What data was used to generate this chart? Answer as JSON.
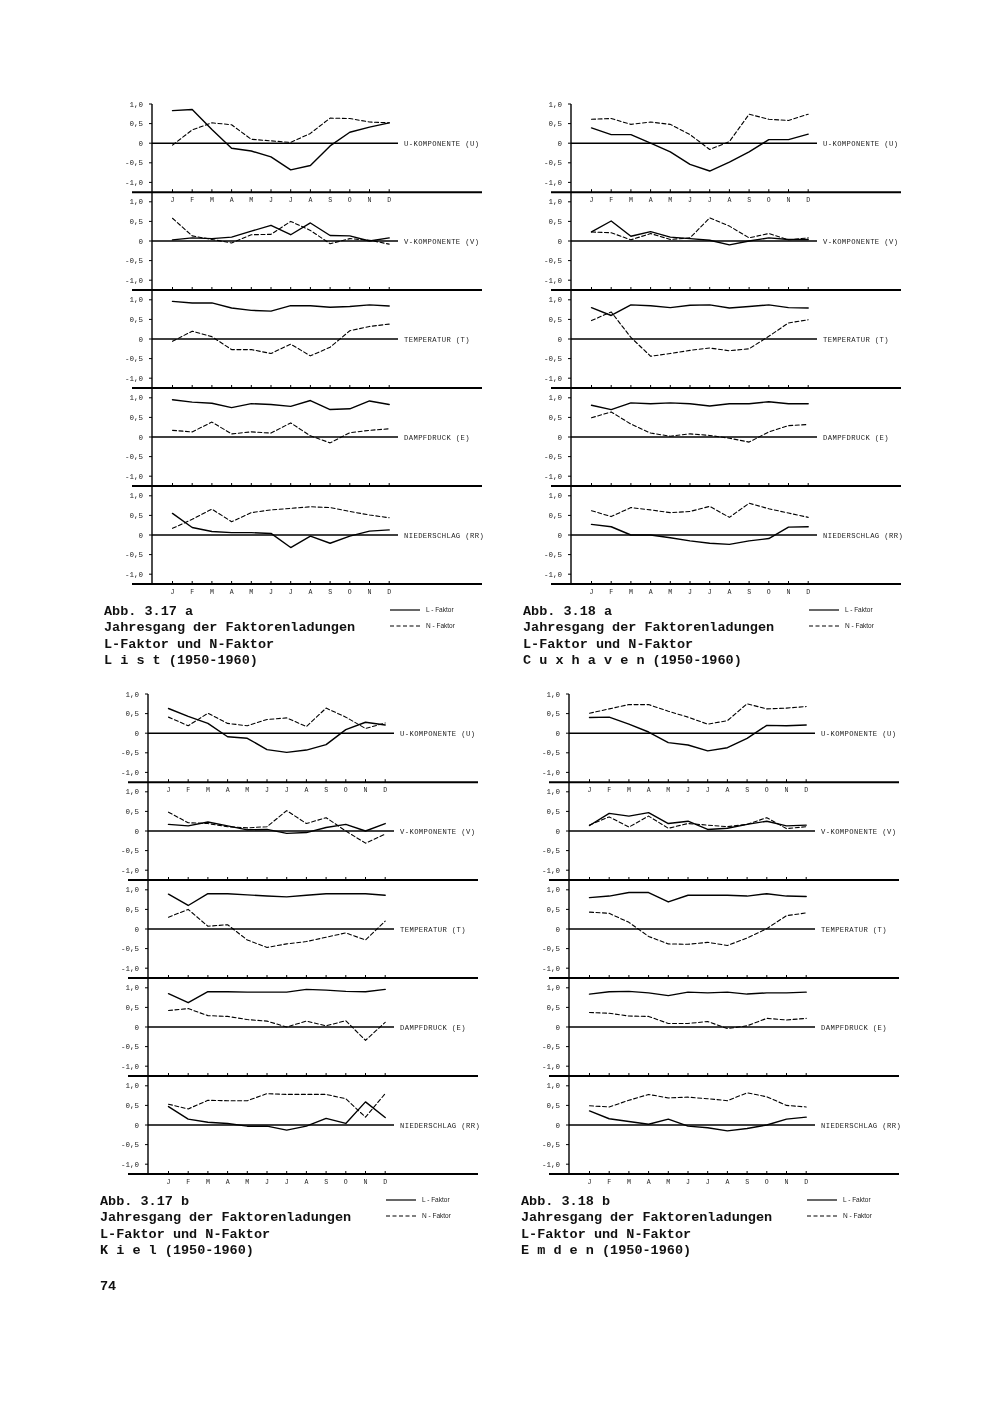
{
  "chart_data": [
    {
      "type": "line",
      "ylabel": "U-KOMPONENTE (U)",
      "categories": [
        "J",
        "F",
        "M",
        "A",
        "M",
        "J",
        "J",
        "A",
        "S",
        "O",
        "N",
        "D"
      ],
      "ylim": [
        -1.25,
        1
      ],
      "yticks": [
        {
          "value": 1,
          "label": "1,0"
        },
        {
          "value": 0.5,
          "label": "0,5"
        },
        {
          "value": 0,
          "label": "0"
        },
        {
          "value": -0.5,
          "label": "-0,5"
        },
        {
          "value": -1,
          "label": "-1,0"
        }
      ],
      "ref_lines": [
        {
          "axis": "y",
          "value": 0
        }
      ],
      "series": [
        {
          "color": "#000000",
          "line_style": "solid",
          "values": [
            0.83,
            0.86,
            0.35,
            -0.13,
            -0.2,
            -0.35,
            -0.68,
            -0.57,
            -0.07,
            0.28,
            0.41,
            0.52
          ]
        },
        {
          "color": "#000000",
          "line_style": "dashed",
          "values": [
            -0.05,
            0.34,
            0.52,
            0.47,
            0.1,
            0.06,
            0.02,
            0.25,
            0.64,
            0.63,
            0.54,
            0.52
          ]
        }
      ]
    },
    {
      "type": "line",
      "ylabel": "V-KOMPONENTE (V)",
      "categories": [
        null,
        null,
        null,
        null,
        null,
        null,
        null,
        null,
        null,
        null,
        null,
        null
      ],
      "tick_labels": "y",
      "ylim": [
        -1.25,
        1.25
      ],
      "yticks": [
        {
          "value": 1,
          "label": "1,0"
        },
        {
          "value": 0.5,
          "label": "0,5"
        },
        {
          "value": 0,
          "label": "0"
        },
        {
          "value": -0.5,
          "label": "-0,5"
        },
        {
          "value": -1,
          "label": "-1,0"
        }
      ],
      "ref_lines": [
        {
          "axis": "y",
          "value": 0
        }
      ],
      "series": [
        {
          "color": "#000000",
          "line_style": "solid",
          "values": [
            0.03,
            0.08,
            0.06,
            0.1,
            0.25,
            0.4,
            0.16,
            0.46,
            0.14,
            0.13,
            0.0,
            0.08
          ]
        },
        {
          "color": "#000000",
          "line_style": "dashed",
          "values": [
            0.58,
            0.13,
            0.04,
            -0.05,
            0.16,
            0.17,
            0.5,
            0.27,
            -0.07,
            0.06,
            0.02,
            -0.08
          ]
        }
      ]
    },
    {
      "type": "line",
      "ylabel": "TEMPERATUR (T)",
      "categories": [
        null,
        null,
        null,
        null,
        null,
        null,
        null,
        null,
        null,
        null,
        null,
        null
      ],
      "tick_labels": "y",
      "ylim": [
        -1.25,
        1.25
      ],
      "yticks": [
        {
          "value": 1,
          "label": "1,0"
        },
        {
          "value": 0.5,
          "label": "0,5"
        },
        {
          "value": 0,
          "label": "0"
        },
        {
          "value": -0.5,
          "label": "-0,5"
        },
        {
          "value": -1,
          "label": "-1,0"
        }
      ],
      "ref_lines": [
        {
          "axis": "y",
          "value": 0
        }
      ],
      "series": [
        {
          "color": "#000000",
          "line_style": "solid",
          "values": [
            0.96,
            0.92,
            0.92,
            0.79,
            0.73,
            0.71,
            0.85,
            0.85,
            0.81,
            0.83,
            0.87,
            0.84
          ]
        },
        {
          "color": "#000000",
          "line_style": "dashed",
          "values": [
            -0.06,
            0.2,
            0.06,
            -0.27,
            -0.27,
            -0.37,
            -0.13,
            -0.43,
            -0.21,
            0.21,
            0.32,
            0.38
          ]
        }
      ]
    },
    {
      "type": "line",
      "ylabel": "DAMPFDRUCK (E)",
      "categories": [
        null,
        null,
        null,
        null,
        null,
        null,
        null,
        null,
        null,
        null,
        null,
        null
      ],
      "tick_labels": "y",
      "ylim": [
        -1.25,
        1.25
      ],
      "yticks": [
        {
          "value": 1,
          "label": "1,0"
        },
        {
          "value": 0.5,
          "label": "0,5"
        },
        {
          "value": 0,
          "label": "0"
        },
        {
          "value": -0.5,
          "label": "-0,5"
        },
        {
          "value": -1,
          "label": "-1,0"
        }
      ],
      "ref_lines": [
        {
          "axis": "y",
          "value": 0
        }
      ],
      "series": [
        {
          "color": "#000000",
          "line_style": "solid",
          "values": [
            0.95,
            0.89,
            0.86,
            0.75,
            0.85,
            0.83,
            0.78,
            0.93,
            0.7,
            0.72,
            0.92,
            0.83
          ]
        },
        {
          "color": "#000000",
          "line_style": "dashed",
          "values": [
            0.17,
            0.13,
            0.38,
            0.08,
            0.13,
            0.1,
            0.36,
            0.03,
            -0.15,
            0.11,
            0.17,
            0.21
          ]
        }
      ]
    },
    {
      "type": "line",
      "ylabel": "NIEDERSCHLAG (RR)",
      "categories": [
        "J",
        "F",
        "M",
        "A",
        "M",
        "J",
        "J",
        "A",
        "S",
        "O",
        "N",
        "D"
      ],
      "ylim": [
        -1.25,
        1.25
      ],
      "yticks": [
        {
          "value": 1,
          "label": "1,0"
        },
        {
          "value": 0.5,
          "label": "0,5"
        },
        {
          "value": 0,
          "label": "0"
        },
        {
          "value": -0.5,
          "label": "-0,5"
        },
        {
          "value": -1,
          "label": "-1,0"
        }
      ],
      "ref_lines": [
        {
          "axis": "y",
          "value": 0
        }
      ],
      "legend": "bottom right",
      "annotations": [
        "Abb. 3.17 a",
        "Jahresgang der Faktorenladungen",
        "L-Faktor und N-Faktor",
        "L i s t (1950-1960)"
      ],
      "series": [
        {
          "name": "L - Faktor",
          "color": "#000000",
          "line_style": "solid",
          "values": [
            0.55,
            0.19,
            0.09,
            0.06,
            0.06,
            0.04,
            -0.32,
            -0.03,
            -0.21,
            -0.03,
            0.1,
            0.13
          ]
        },
        {
          "name": "N - Faktor",
          "color": "#000000",
          "line_style": "dashed",
          "values": [
            0.17,
            0.4,
            0.66,
            0.34,
            0.57,
            0.64,
            0.68,
            0.72,
            0.7,
            0.6,
            0.51,
            0.44
          ]
        }
      ]
    },
    {
      "type": "line",
      "ylabel": "U-KOMPONENTE (U)",
      "categories": [
        "J",
        "F",
        "M",
        "A",
        "M",
        "J",
        "J",
        "A",
        "S",
        "O",
        "N",
        "D"
      ],
      "ylim": [
        -1.25,
        1
      ],
      "yticks": [
        {
          "value": 1,
          "label": "1,0"
        },
        {
          "value": 0.5,
          "label": "0,5"
        },
        {
          "value": 0,
          "label": "0"
        },
        {
          "value": -0.5,
          "label": "-0,5"
        },
        {
          "value": -1,
          "label": "-1,0"
        }
      ],
      "ref_lines": [
        {
          "axis": "y",
          "value": 0
        }
      ],
      "series": [
        {
          "color": "#000000",
          "line_style": "solid",
          "values": [
            0.39,
            0.22,
            0.22,
            0.0,
            -0.22,
            -0.54,
            -0.71,
            -0.48,
            -0.22,
            0.09,
            0.09,
            0.23
          ]
        },
        {
          "color": "#000000",
          "line_style": "dashed",
          "values": [
            0.61,
            0.63,
            0.48,
            0.54,
            0.48,
            0.22,
            -0.16,
            0.04,
            0.74,
            0.61,
            0.58,
            0.74
          ]
        }
      ]
    },
    {
      "type": "line",
      "ylabel": "V-KOMPONENTE (V)",
      "categories": [
        null,
        null,
        null,
        null,
        null,
        null,
        null,
        null,
        null,
        null,
        null,
        null
      ],
      "tick_labels": "y",
      "ylim": [
        -1.25,
        1.25
      ],
      "yticks": [
        {
          "value": 1,
          "label": "1,0"
        },
        {
          "value": 0.5,
          "label": "0,5"
        },
        {
          "value": 0,
          "label": "0"
        },
        {
          "value": -0.5,
          "label": "-0,5"
        },
        {
          "value": -1,
          "label": "-1,0"
        }
      ],
      "ref_lines": [
        {
          "axis": "y",
          "value": 0
        }
      ],
      "series": [
        {
          "color": "#000000",
          "line_style": "solid",
          "values": [
            0.23,
            0.51,
            0.12,
            0.24,
            0.1,
            0.06,
            0.02,
            -0.1,
            0.0,
            0.08,
            0.04,
            0.04
          ]
        },
        {
          "color": "#000000",
          "line_style": "dashed",
          "values": [
            0.23,
            0.21,
            0.03,
            0.19,
            0.04,
            0.08,
            0.59,
            0.38,
            0.08,
            0.19,
            0.03,
            0.08
          ]
        }
      ]
    },
    {
      "type": "line",
      "ylabel": "TEMPERATUR (T)",
      "categories": [
        null,
        null,
        null,
        null,
        null,
        null,
        null,
        null,
        null,
        null,
        null,
        null
      ],
      "tick_labels": "y",
      "ylim": [
        -1.25,
        1.25
      ],
      "yticks": [
        {
          "value": 1,
          "label": "1,0"
        },
        {
          "value": 0.5,
          "label": "0,5"
        },
        {
          "value": 0,
          "label": "0"
        },
        {
          "value": -0.5,
          "label": "-0,5"
        },
        {
          "value": -1,
          "label": "-1,0"
        }
      ],
      "ref_lines": [
        {
          "axis": "y",
          "value": 0
        }
      ],
      "series": [
        {
          "color": "#000000",
          "line_style": "solid",
          "values": [
            0.8,
            0.6,
            0.87,
            0.85,
            0.8,
            0.86,
            0.87,
            0.79,
            0.83,
            0.87,
            0.8,
            0.79
          ]
        },
        {
          "color": "#000000",
          "line_style": "dashed",
          "values": [
            0.47,
            0.69,
            0.04,
            -0.44,
            -0.37,
            -0.29,
            -0.23,
            -0.3,
            -0.25,
            0.07,
            0.41,
            0.49
          ]
        }
      ]
    },
    {
      "type": "line",
      "ylabel": "DAMPFDRUCK (E)",
      "categories": [
        null,
        null,
        null,
        null,
        null,
        null,
        null,
        null,
        null,
        null,
        null,
        null
      ],
      "tick_labels": "y",
      "ylim": [
        -1.25,
        1.25
      ],
      "yticks": [
        {
          "value": 1,
          "label": "1,0"
        },
        {
          "value": 0.5,
          "label": "0,5"
        },
        {
          "value": 0,
          "label": "0"
        },
        {
          "value": -0.5,
          "label": "-0,5"
        },
        {
          "value": -1,
          "label": "-1,0"
        }
      ],
      "ref_lines": [
        {
          "axis": "y",
          "value": 0
        }
      ],
      "series": [
        {
          "color": "#000000",
          "line_style": "solid",
          "values": [
            0.81,
            0.7,
            0.87,
            0.85,
            0.87,
            0.85,
            0.79,
            0.85,
            0.85,
            0.9,
            0.85,
            0.85
          ]
        },
        {
          "color": "#000000",
          "line_style": "dashed",
          "values": [
            0.49,
            0.64,
            0.33,
            0.1,
            0.02,
            0.08,
            0.04,
            -0.03,
            -0.13,
            0.13,
            0.29,
            0.32
          ]
        }
      ]
    },
    {
      "type": "line",
      "ylabel": "NIEDERSCHLAG (RR)",
      "categories": [
        "J",
        "F",
        "M",
        "A",
        "M",
        "J",
        "J",
        "A",
        "S",
        "O",
        "N",
        "D"
      ],
      "ylim": [
        -1.25,
        1.25
      ],
      "yticks": [
        {
          "value": 1,
          "label": "1,0"
        },
        {
          "value": 0.5,
          "label": "0,5"
        },
        {
          "value": 0,
          "label": "0"
        },
        {
          "value": -0.5,
          "label": "-0,5"
        },
        {
          "value": -1,
          "label": "-1,0"
        }
      ],
      "ref_lines": [
        {
          "axis": "y",
          "value": 0
        }
      ],
      "legend": "bottom right",
      "annotations": [
        "Abb. 3.18 a",
        "Jahresgang der Faktorenladungen",
        "L-Faktor und N-Faktor",
        "C u x h a v e n (1950-1960)"
      ],
      "series": [
        {
          "name": "L - Faktor",
          "color": "#000000",
          "line_style": "solid",
          "values": [
            0.27,
            0.21,
            0.0,
            0.0,
            -0.07,
            -0.15,
            -0.21,
            -0.24,
            -0.15,
            -0.09,
            0.2,
            0.21
          ]
        },
        {
          "name": "N - Faktor",
          "color": "#000000",
          "line_style": "dashed",
          "values": [
            0.62,
            0.47,
            0.7,
            0.64,
            0.57,
            0.6,
            0.73,
            0.45,
            0.81,
            0.67,
            0.56,
            0.45
          ]
        }
      ]
    },
    {
      "type": "line",
      "ylabel": "U-KOMPONENTE (U)",
      "categories": [
        "J",
        "F",
        "M",
        "A",
        "M",
        "J",
        "J",
        "A",
        "S",
        "O",
        "N",
        "D"
      ],
      "ylim": [
        -1.25,
        1
      ],
      "yticks": [
        {
          "value": 1,
          "label": "1,0"
        },
        {
          "value": 0.5,
          "label": "0,5"
        },
        {
          "value": 0,
          "label": "0"
        },
        {
          "value": -0.5,
          "label": "-0,5"
        },
        {
          "value": -1,
          "label": "-1,0"
        }
      ],
      "ref_lines": [
        {
          "axis": "y",
          "value": 0
        }
      ],
      "series": [
        {
          "color": "#000000",
          "line_style": "solid",
          "values": [
            0.63,
            0.43,
            0.25,
            -0.09,
            -0.13,
            -0.42,
            -0.49,
            -0.43,
            -0.29,
            0.09,
            0.28,
            0.21
          ]
        },
        {
          "color": "#000000",
          "line_style": "dashed",
          "values": [
            0.41,
            0.19,
            0.51,
            0.25,
            0.19,
            0.35,
            0.39,
            0.17,
            0.64,
            0.41,
            0.12,
            0.26
          ]
        }
      ]
    },
    {
      "type": "line",
      "ylabel": "V-KOMPONENTE (V)",
      "categories": [
        null,
        null,
        null,
        null,
        null,
        null,
        null,
        null,
        null,
        null,
        null,
        null
      ],
      "tick_labels": "y",
      "ylim": [
        -1.25,
        1.25
      ],
      "yticks": [
        {
          "value": 1,
          "label": "1,0"
        },
        {
          "value": 0.5,
          "label": "0,5"
        },
        {
          "value": 0,
          "label": "0"
        },
        {
          "value": -0.5,
          "label": "-0,5"
        },
        {
          "value": -1,
          "label": "-1,0"
        }
      ],
      "ref_lines": [
        {
          "axis": "y",
          "value": 0
        }
      ],
      "series": [
        {
          "color": "#000000",
          "line_style": "solid",
          "values": [
            0.17,
            0.13,
            0.23,
            0.13,
            0.03,
            0.04,
            -0.06,
            -0.04,
            0.09,
            0.17,
            0.0,
            0.19
          ]
        },
        {
          "color": "#000000",
          "line_style": "dashed",
          "values": [
            0.48,
            0.21,
            0.19,
            0.11,
            0.08,
            0.11,
            0.52,
            0.19,
            0.34,
            0.0,
            -0.31,
            -0.08
          ]
        }
      ]
    },
    {
      "type": "line",
      "ylabel": "TEMPERATUR (T)",
      "categories": [
        null,
        null,
        null,
        null,
        null,
        null,
        null,
        null,
        null,
        null,
        null,
        null
      ],
      "tick_labels": "y",
      "ylim": [
        -1.25,
        1.25
      ],
      "yticks": [
        {
          "value": 1,
          "label": "1,0"
        },
        {
          "value": 0.5,
          "label": "0,5"
        },
        {
          "value": 0,
          "label": "0"
        },
        {
          "value": -0.5,
          "label": "-0,5"
        },
        {
          "value": -1,
          "label": "-1,0"
        }
      ],
      "ref_lines": [
        {
          "axis": "y",
          "value": 0
        }
      ],
      "series": [
        {
          "color": "#000000",
          "line_style": "solid",
          "values": [
            0.89,
            0.6,
            0.9,
            0.9,
            0.87,
            0.84,
            0.82,
            0.86,
            0.9,
            0.9,
            0.9,
            0.86
          ]
        },
        {
          "color": "#000000",
          "line_style": "dashed",
          "values": [
            0.3,
            0.5,
            0.07,
            0.11,
            -0.28,
            -0.47,
            -0.38,
            -0.32,
            -0.21,
            -0.1,
            -0.28,
            0.2
          ]
        }
      ]
    },
    {
      "type": "line",
      "ylabel": "DAMPFDRUCK (E)",
      "categories": [
        null,
        null,
        null,
        null,
        null,
        null,
        null,
        null,
        null,
        null,
        null,
        null
      ],
      "tick_labels": "y",
      "ylim": [
        -1.25,
        1.25
      ],
      "yticks": [
        {
          "value": 1,
          "label": "1,0"
        },
        {
          "value": 0.5,
          "label": "0,5"
        },
        {
          "value": 0,
          "label": "0"
        },
        {
          "value": -0.5,
          "label": "-0,5"
        },
        {
          "value": -1,
          "label": "-1,0"
        }
      ],
      "ref_lines": [
        {
          "axis": "y",
          "value": 0
        }
      ],
      "series": [
        {
          "color": "#000000",
          "line_style": "solid",
          "values": [
            0.85,
            0.62,
            0.9,
            0.9,
            0.89,
            0.89,
            0.89,
            0.96,
            0.94,
            0.91,
            0.9,
            0.96
          ]
        },
        {
          "color": "#000000",
          "line_style": "dashed",
          "values": [
            0.42,
            0.47,
            0.29,
            0.27,
            0.19,
            0.15,
            0.0,
            0.15,
            0.03,
            0.16,
            -0.34,
            0.12
          ]
        }
      ]
    },
    {
      "type": "line",
      "ylabel": "NIEDERSCHLAG (RR)",
      "categories": [
        "J",
        "F",
        "M",
        "A",
        "M",
        "J",
        "J",
        "A",
        "S",
        "O",
        "N",
        "D"
      ],
      "ylim": [
        -1.25,
        1.25
      ],
      "yticks": [
        {
          "value": 1,
          "label": "1,0"
        },
        {
          "value": 0.5,
          "label": "0,5"
        },
        {
          "value": 0,
          "label": "0"
        },
        {
          "value": -0.5,
          "label": "-0,5"
        },
        {
          "value": -1,
          "label": "-1,0"
        }
      ],
      "ref_lines": [
        {
          "axis": "y",
          "value": 0
        }
      ],
      "legend": "bottom right",
      "annotations": [
        "Abb. 3.17 b",
        "Jahresgang der Faktorenladungen",
        "L-Faktor und N-Faktor",
        "K i e l (1950-1960)",
        "74"
      ],
      "series": [
        {
          "name": "L - Faktor",
          "color": "#000000",
          "line_style": "solid",
          "values": [
            0.47,
            0.15,
            0.07,
            0.04,
            -0.03,
            -0.03,
            -0.13,
            -0.03,
            0.17,
            0.04,
            0.59,
            0.19
          ]
        },
        {
          "name": "N - Faktor",
          "color": "#000000",
          "line_style": "dashed",
          "values": [
            0.53,
            0.41,
            0.63,
            0.62,
            0.62,
            0.8,
            0.78,
            0.78,
            0.78,
            0.67,
            0.2,
            0.8
          ]
        }
      ]
    },
    {
      "type": "line",
      "ylabel": "U-KOMPONENTE (U)",
      "categories": [
        "J",
        "F",
        "M",
        "A",
        "M",
        "J",
        "J",
        "A",
        "S",
        "O",
        "N",
        "D"
      ],
      "ylim": [
        -1.25,
        1
      ],
      "yticks": [
        {
          "value": 1,
          "label": "1,0"
        },
        {
          "value": 0.5,
          "label": "0,5"
        },
        {
          "value": 0,
          "label": "0"
        },
        {
          "value": -0.5,
          "label": "-0,5"
        },
        {
          "value": -1,
          "label": "-1,0"
        }
      ],
      "ref_lines": [
        {
          "axis": "y",
          "value": 0
        }
      ],
      "series": [
        {
          "color": "#000000",
          "line_style": "solid",
          "values": [
            0.4,
            0.41,
            0.23,
            0.03,
            -0.24,
            -0.3,
            -0.45,
            -0.37,
            -0.13,
            0.2,
            0.19,
            0.21
          ]
        },
        {
          "color": "#000000",
          "line_style": "dashed",
          "values": [
            0.51,
            0.62,
            0.73,
            0.73,
            0.56,
            0.41,
            0.23,
            0.32,
            0.75,
            0.62,
            0.64,
            0.68
          ]
        }
      ]
    },
    {
      "type": "line",
      "ylabel": "V-KOMPONENTE (V)",
      "categories": [
        null,
        null,
        null,
        null,
        null,
        null,
        null,
        null,
        null,
        null,
        null,
        null
      ],
      "tick_labels": "y",
      "ylim": [
        -1.25,
        1.25
      ],
      "yticks": [
        {
          "value": 1,
          "label": "1,0"
        },
        {
          "value": 0.5,
          "label": "0,5"
        },
        {
          "value": 0,
          "label": "0"
        },
        {
          "value": -0.5,
          "label": "-0,5"
        },
        {
          "value": -1,
          "label": "-1,0"
        }
      ],
      "ref_lines": [
        {
          "axis": "y",
          "value": 0
        }
      ],
      "series": [
        {
          "color": "#000000",
          "line_style": "solid",
          "values": [
            0.14,
            0.45,
            0.38,
            0.47,
            0.19,
            0.25,
            0.04,
            0.07,
            0.17,
            0.25,
            0.13,
            0.15
          ]
        },
        {
          "color": "#000000",
          "line_style": "dashed",
          "values": [
            0.15,
            0.36,
            0.1,
            0.38,
            0.07,
            0.19,
            0.15,
            0.11,
            0.17,
            0.34,
            0.06,
            0.11
          ]
        }
      ]
    },
    {
      "type": "line",
      "ylabel": "TEMPERATUR (T)",
      "categories": [
        null,
        null,
        null,
        null,
        null,
        null,
        null,
        null,
        null,
        null,
        null,
        null
      ],
      "tick_labels": "y",
      "ylim": [
        -1.25,
        1.25
      ],
      "yticks": [
        {
          "value": 1,
          "label": "1,0"
        },
        {
          "value": 0.5,
          "label": "0,5"
        },
        {
          "value": 0,
          "label": "0"
        },
        {
          "value": -0.5,
          "label": "-0,5"
        },
        {
          "value": -1,
          "label": "-1,0"
        }
      ],
      "ref_lines": [
        {
          "axis": "y",
          "value": 0
        }
      ],
      "series": [
        {
          "color": "#000000",
          "line_style": "solid",
          "values": [
            0.8,
            0.84,
            0.93,
            0.93,
            0.69,
            0.86,
            0.86,
            0.86,
            0.84,
            0.9,
            0.84,
            0.83
          ]
        },
        {
          "color": "#000000",
          "line_style": "dashed",
          "values": [
            0.43,
            0.4,
            0.17,
            -0.19,
            -0.38,
            -0.39,
            -0.34,
            -0.42,
            -0.23,
            0.01,
            0.34,
            0.41
          ]
        }
      ]
    },
    {
      "type": "line",
      "ylabel": "DAMPFDRUCK (E)",
      "categories": [
        null,
        null,
        null,
        null,
        null,
        null,
        null,
        null,
        null,
        null,
        null,
        null
      ],
      "tick_labels": "y",
      "ylim": [
        -1.25,
        1.25
      ],
      "yticks": [
        {
          "value": 1,
          "label": "1,0"
        },
        {
          "value": 0.5,
          "label": "0,5"
        },
        {
          "value": 0,
          "label": "0"
        },
        {
          "value": -0.5,
          "label": "-0,5"
        },
        {
          "value": -1,
          "label": "-1,0"
        }
      ],
      "ref_lines": [
        {
          "axis": "y",
          "value": 0
        }
      ],
      "series": [
        {
          "color": "#000000",
          "line_style": "solid",
          "values": [
            0.84,
            0.9,
            0.91,
            0.87,
            0.8,
            0.89,
            0.87,
            0.89,
            0.84,
            0.87,
            0.87,
            0.89
          ]
        },
        {
          "color": "#000000",
          "line_style": "dashed",
          "values": [
            0.37,
            0.35,
            0.28,
            0.27,
            0.09,
            0.09,
            0.14,
            -0.04,
            0.03,
            0.22,
            0.18,
            0.22
          ]
        }
      ]
    },
    {
      "type": "line",
      "ylabel": "NIEDERSCHLAG (RR)",
      "categories": [
        "J",
        "F",
        "M",
        "A",
        "M",
        "J",
        "J",
        "A",
        "S",
        "O",
        "N",
        "D"
      ],
      "ylim": [
        -1.25,
        1.25
      ],
      "yticks": [
        {
          "value": 1,
          "label": "1,0"
        },
        {
          "value": 0.5,
          "label": "0,5"
        },
        {
          "value": 0,
          "label": "0"
        },
        {
          "value": -0.5,
          "label": "-0,5"
        },
        {
          "value": -1,
          "label": "-1,0"
        }
      ],
      "ref_lines": [
        {
          "axis": "y",
          "value": 0
        }
      ],
      "legend": "bottom right",
      "annotations": [
        "Abb. 3.18 b",
        "Jahresgang der Faktorenladungen",
        "L-Faktor und N-Faktor",
        "E m d e n (1950-1960)"
      ],
      "series": [
        {
          "name": "L - Faktor",
          "color": "#000000",
          "line_style": "solid",
          "values": [
            0.36,
            0.16,
            0.09,
            0.02,
            0.15,
            -0.03,
            -0.07,
            -0.15,
            -0.09,
            0.0,
            0.15,
            0.2
          ]
        },
        {
          "name": "N - Faktor",
          "color": "#000000",
          "line_style": "dashed",
          "values": [
            0.49,
            0.46,
            0.63,
            0.78,
            0.69,
            0.71,
            0.67,
            0.62,
            0.82,
            0.72,
            0.5,
            0.46
          ]
        }
      ]
    }
  ]
}
